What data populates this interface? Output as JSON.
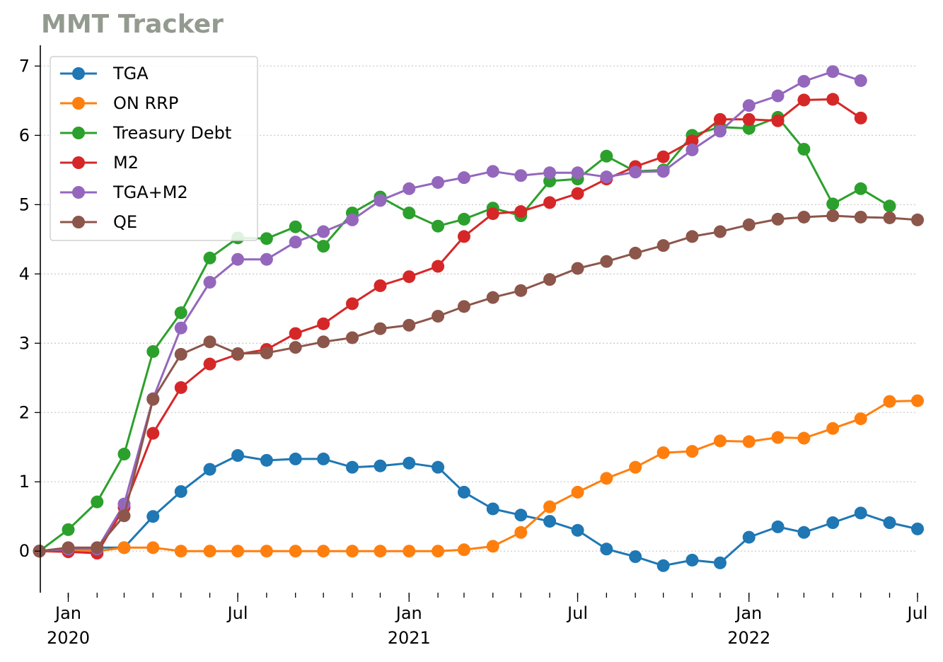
{
  "chart_data": {
    "type": "line",
    "title": "MMT Tracker",
    "xlabel": "",
    "ylabel": "",
    "x_axis": {
      "range": [
        "2019-12-02",
        "2022-07-01"
      ],
      "major_ticks": [
        {
          "date": "2020-01-01",
          "label": "Jan",
          "year": "2020"
        },
        {
          "date": "2020-07-01",
          "label": "Jul",
          "year": ""
        },
        {
          "date": "2021-01-01",
          "label": "Jan",
          "year": "2021"
        },
        {
          "date": "2021-07-01",
          "label": "Jul",
          "year": ""
        },
        {
          "date": "2022-01-01",
          "label": "Jan",
          "year": "2022"
        },
        {
          "date": "2022-07-01",
          "label": "Jul",
          "year": ""
        }
      ]
    },
    "y_axis": {
      "range": [
        -0.6,
        7.3
      ],
      "ticks": [
        "0",
        "1",
        "2",
        "3",
        "4",
        "5",
        "6",
        "7"
      ]
    },
    "grid": "horizontal-dotted",
    "legend_position": "top-left",
    "dates": [
      "2019-12-01",
      "2020-01-01",
      "2020-02-01",
      "2020-03-01",
      "2020-04-01",
      "2020-05-01",
      "2020-06-01",
      "2020-07-01",
      "2020-08-01",
      "2020-09-01",
      "2020-10-01",
      "2020-11-01",
      "2020-12-01",
      "2021-01-01",
      "2021-02-01",
      "2021-03-01",
      "2021-04-01",
      "2021-05-01",
      "2021-06-01",
      "2021-07-01",
      "2021-08-01",
      "2021-09-01",
      "2021-10-01",
      "2021-11-01",
      "2021-12-01",
      "2022-01-01",
      "2022-02-01",
      "2022-03-01",
      "2022-04-01",
      "2022-05-01",
      "2022-06-01",
      "2022-07-01"
    ],
    "series": [
      {
        "name": "TGA",
        "color": "#1f77b4",
        "values": [
          0.0,
          0.04,
          0.05,
          0.05,
          0.5,
          0.86,
          1.18,
          1.38,
          1.31,
          1.33,
          1.33,
          1.21,
          1.23,
          1.27,
          1.21,
          0.85,
          0.61,
          0.52,
          0.43,
          0.3,
          0.03,
          -0.08,
          -0.21,
          -0.13,
          -0.17,
          0.2,
          0.35,
          0.27,
          0.41,
          0.55,
          0.41,
          0.32
        ]
      },
      {
        "name": "ON RRP",
        "color": "#ff7f0e",
        "values": [
          0.0,
          0.0,
          0.0,
          0.05,
          0.05,
          0.0,
          0.0,
          0.0,
          0.0,
          0.0,
          0.0,
          0.0,
          0.0,
          0.0,
          0.0,
          0.02,
          0.07,
          0.27,
          0.64,
          0.85,
          1.05,
          1.21,
          1.42,
          1.44,
          1.59,
          1.58,
          1.64,
          1.63,
          1.77,
          1.91,
          2.16,
          2.17
        ]
      },
      {
        "name": "Treasury Debt",
        "color": "#2ca02c",
        "values": [
          0.0,
          0.31,
          0.71,
          1.4,
          2.88,
          3.44,
          4.23,
          4.52,
          4.51,
          4.68,
          4.4,
          4.88,
          5.11,
          4.88,
          4.69,
          4.79,
          4.95,
          4.84,
          5.34,
          5.37,
          5.7,
          5.48,
          5.5,
          6.0,
          6.12,
          6.1,
          6.26,
          5.8,
          5.01,
          5.23,
          4.98,
          null
        ]
      },
      {
        "name": "M2",
        "color": "#d62728",
        "values": [
          0.0,
          -0.01,
          -0.03,
          0.63,
          1.7,
          2.36,
          2.7,
          2.84,
          2.91,
          3.14,
          3.28,
          3.57,
          3.83,
          3.96,
          4.11,
          4.54,
          4.87,
          4.9,
          5.03,
          5.16,
          5.37,
          5.55,
          5.69,
          5.92,
          6.23,
          6.23,
          6.21,
          6.51,
          6.52,
          6.25,
          null,
          null
        ]
      },
      {
        "name": "TGA+M2",
        "color": "#9467bd",
        "values": [
          0.0,
          0.03,
          0.03,
          0.68,
          2.2,
          3.22,
          3.88,
          4.21,
          4.21,
          4.46,
          4.61,
          4.78,
          5.06,
          5.23,
          5.32,
          5.39,
          5.48,
          5.42,
          5.46,
          5.46,
          5.4,
          5.47,
          5.48,
          5.79,
          6.06,
          6.43,
          6.57,
          6.78,
          6.92,
          6.79,
          null,
          null
        ]
      },
      {
        "name": "QE",
        "color": "#8c564b",
        "values": [
          0.0,
          0.05,
          0.05,
          0.51,
          2.19,
          2.84,
          3.02,
          2.85,
          2.86,
          2.94,
          3.02,
          3.08,
          3.21,
          3.26,
          3.39,
          3.53,
          3.66,
          3.76,
          3.92,
          4.08,
          4.18,
          4.3,
          4.41,
          4.54,
          4.61,
          4.71,
          4.79,
          4.82,
          4.84,
          4.82,
          4.81,
          4.78
        ]
      }
    ]
  }
}
